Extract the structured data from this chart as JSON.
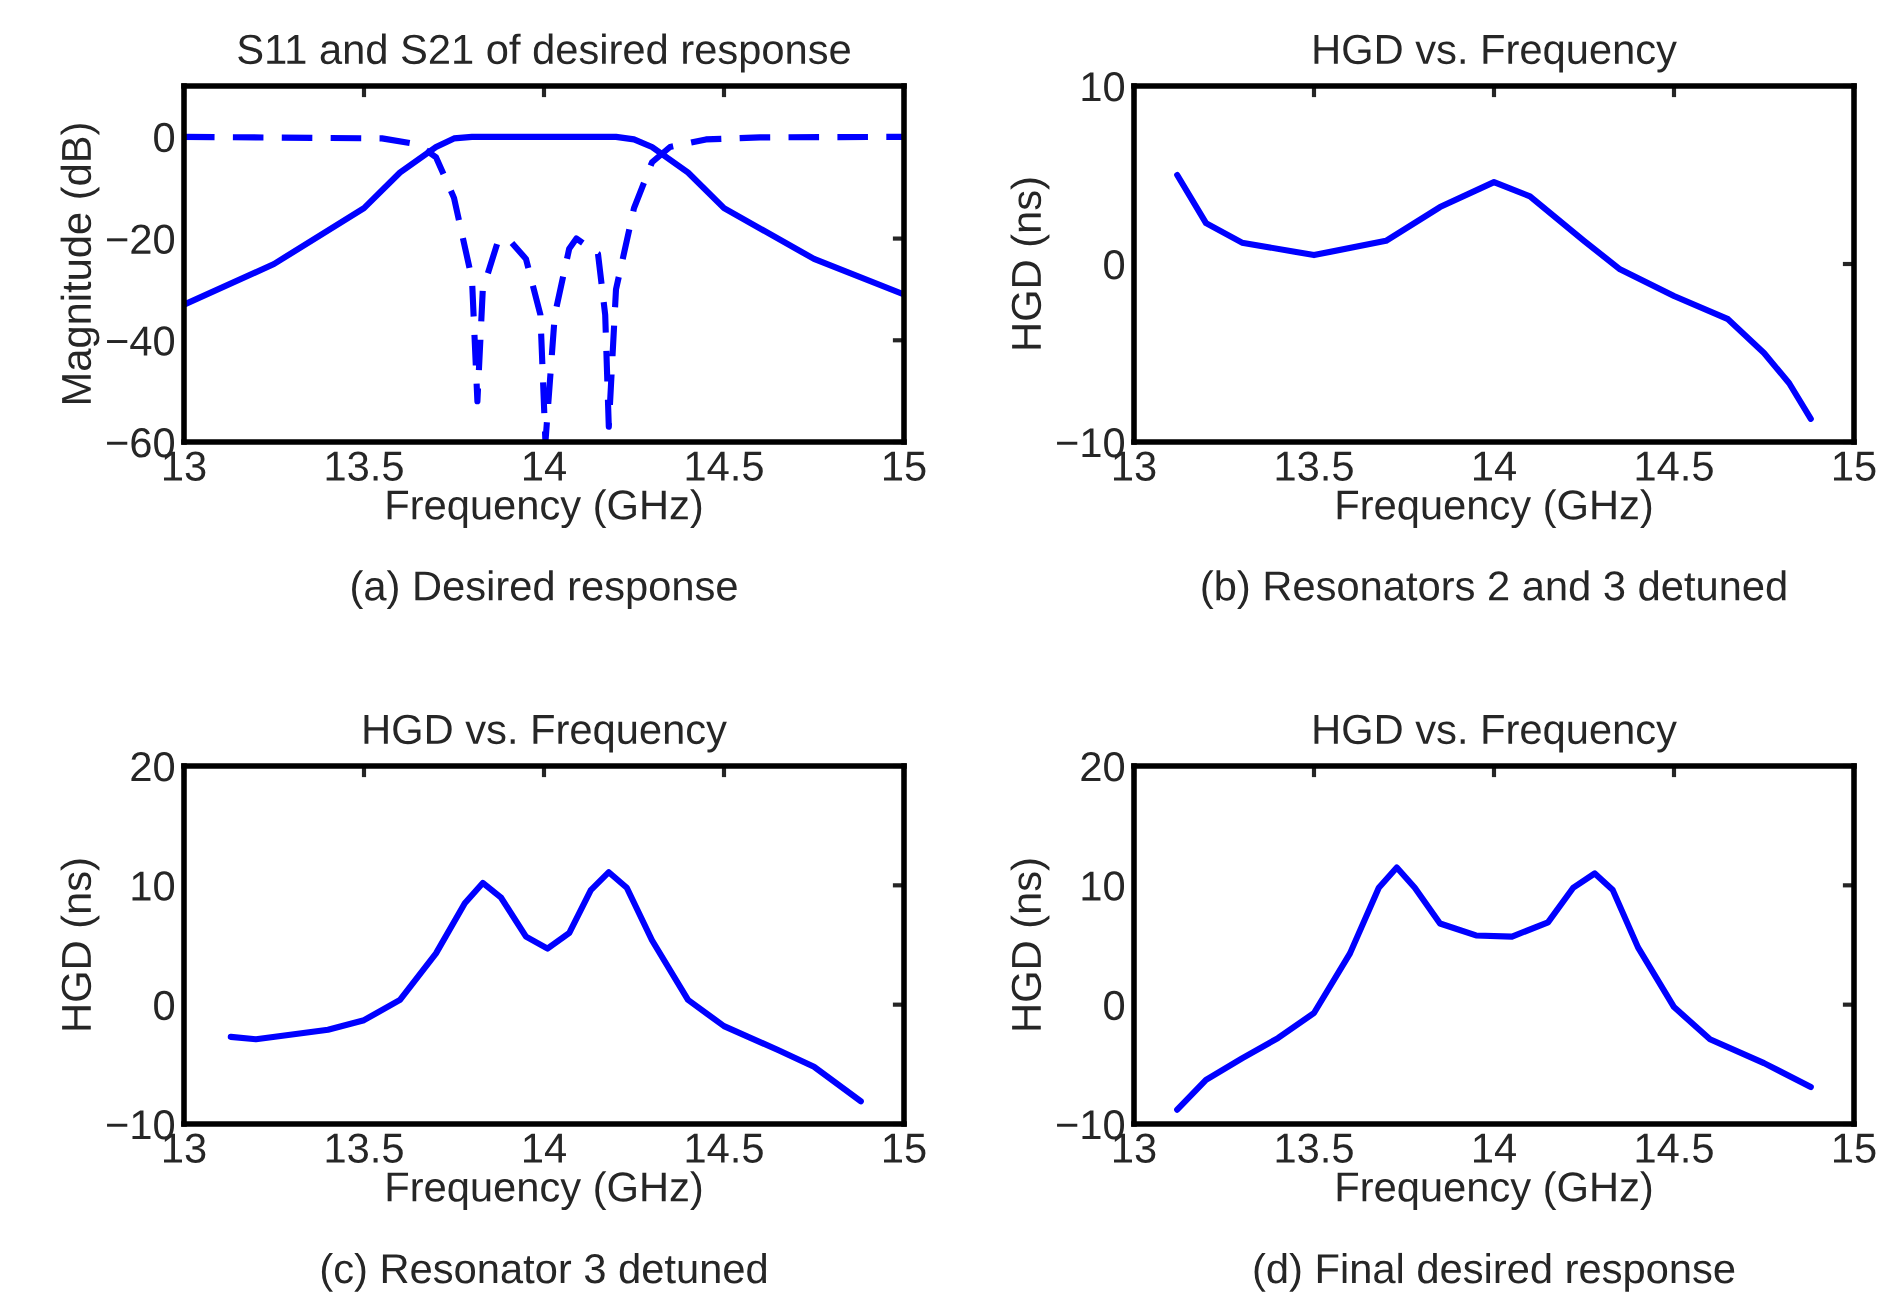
{
  "chart_data": [
    {
      "type": "line",
      "title": "S11 and S21 of desired response",
      "xlabel": "Frequency (GHz)",
      "ylabel": "Magnitude (dB)",
      "annotations": [
        "(a) Desired response"
      ],
      "xlim": [
        13,
        15
      ],
      "ylim": [
        -60,
        10
      ],
      "xticks": [
        13,
        13.5,
        14,
        14.5,
        15
      ],
      "yticks": [
        0,
        {
          "value": -20,
          "label": "−20"
        },
        {
          "value": -40,
          "label": "−40"
        },
        {
          "value": -60,
          "label": "−60"
        }
      ],
      "series": [
        {
          "color": "#0000ff",
          "line_style": "solid",
          "x": [
            13,
            13.25,
            13.5,
            13.6,
            13.7,
            13.75,
            13.8,
            14.2,
            14.25,
            14.3,
            14.4,
            14.5,
            14.75,
            15
          ],
          "values": [
            -33,
            -25,
            -14,
            -7,
            -2,
            -0.3,
            0,
            0,
            -0.5,
            -2,
            -7,
            -14,
            -24,
            -31
          ]
        },
        {
          "color": "#0000ff",
          "line_style": "dashed",
          "x": [
            13,
            13.55,
            13.65,
            13.7,
            13.75,
            13.8,
            13.815,
            13.83,
            13.87,
            13.9,
            13.95,
            13.99,
            14.004,
            14.03,
            14.07,
            14.09,
            14.15,
            14.17,
            14.18,
            14.2,
            14.25,
            14.3,
            14.35,
            14.45,
            14.6,
            15
          ],
          "values": [
            0,
            -0.3,
            -1.5,
            -4,
            -12,
            -28,
            -52,
            -30,
            -21,
            -20,
            -24,
            -35,
            -60,
            -35,
            -22,
            -20,
            -23,
            -35,
            -57,
            -30,
            -14,
            -5,
            -2,
            -0.5,
            -0.1,
            0
          ]
        }
      ]
    },
    {
      "type": "line",
      "title": "HGD vs. Frequency",
      "xlabel": "Frequency (GHz)",
      "ylabel": "HGD (ns)",
      "annotations": [
        "(b) Resonators 2 and 3 detuned"
      ],
      "xlim": [
        13,
        15
      ],
      "ylim": [
        -10,
        10
      ],
      "xticks": [
        13,
        13.5,
        14,
        14.5,
        15
      ],
      "yticks": [
        {
          "value": -10,
          "label": "−10"
        },
        0,
        10
      ],
      "series": [
        {
          "color": "#0000ff",
          "line_style": "solid",
          "x": [
            13.12,
            13.2,
            13.3,
            13.5,
            13.7,
            13.85,
            14.0,
            14.1,
            14.25,
            14.35,
            14.5,
            14.65,
            14.75,
            14.82,
            14.88
          ],
          "values": [
            5.0,
            2.3,
            1.2,
            0.5,
            1.3,
            3.2,
            4.6,
            3.8,
            1.3,
            -0.3,
            -1.8,
            -3.1,
            -5.0,
            -6.7,
            -8.7
          ]
        }
      ]
    },
    {
      "type": "line",
      "title": "HGD vs. Frequency",
      "xlabel": "Frequency (GHz)",
      "ylabel": "HGD (ns)",
      "annotations": [
        "(c) Resonator 3 detuned"
      ],
      "xlim": [
        13,
        15
      ],
      "ylim": [
        -10,
        20
      ],
      "xticks": [
        13,
        13.5,
        14,
        14.5,
        15
      ],
      "yticks": [
        {
          "value": -10,
          "label": "−10"
        },
        0,
        10,
        20
      ],
      "series": [
        {
          "color": "#0000ff",
          "line_style": "solid",
          "x": [
            13.13,
            13.2,
            13.4,
            13.5,
            13.6,
            13.7,
            13.78,
            13.83,
            13.88,
            13.95,
            14.01,
            14.07,
            14.13,
            14.18,
            14.23,
            14.3,
            14.4,
            14.5,
            14.65,
            14.75,
            14.88
          ],
          "values": [
            -2.7,
            -2.9,
            -2.1,
            -1.3,
            0.4,
            4.3,
            8.5,
            10.2,
            9.0,
            5.7,
            4.7,
            6.0,
            9.6,
            11.1,
            9.8,
            5.4,
            0.4,
            -1.8,
            -3.8,
            -5.2,
            -8.1
          ]
        }
      ]
    },
    {
      "type": "line",
      "title": "HGD vs. Frequency",
      "xlabel": "Frequency (GHz)",
      "ylabel": "HGD (ns)",
      "annotations": [
        "(d) Final desired response"
      ],
      "xlim": [
        13,
        15
      ],
      "ylim": [
        -10,
        20
      ],
      "xticks": [
        13,
        13.5,
        14,
        14.5,
        15
      ],
      "yticks": [
        {
          "value": -10,
          "label": "−10"
        },
        0,
        10,
        20
      ],
      "series": [
        {
          "color": "#0000ff",
          "line_style": "solid",
          "x": [
            13.12,
            13.2,
            13.3,
            13.4,
            13.5,
            13.6,
            13.68,
            13.73,
            13.78,
            13.85,
            13.95,
            14.05,
            14.15,
            14.22,
            14.28,
            14.33,
            14.4,
            14.5,
            14.6,
            14.75,
            14.88
          ],
          "values": [
            -8.8,
            -6.3,
            -4.5,
            -2.8,
            -0.7,
            4.3,
            9.8,
            11.5,
            9.8,
            6.8,
            5.8,
            5.7,
            6.9,
            9.8,
            11.0,
            9.6,
            4.8,
            -0.2,
            -2.9,
            -4.9,
            -6.9
          ]
        }
      ]
    }
  ]
}
